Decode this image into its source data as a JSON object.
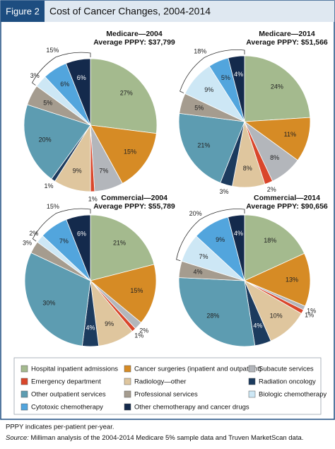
{
  "figure_label": "Figure 2",
  "header_title": "Cost of Cancer Changes, 2004-2014",
  "legend": {
    "categories": [
      "Hospital inpatient admissions",
      "Cancer surgeries (inpatient and outpatient)",
      "Subacute services",
      "Emergency department",
      "Radiology—other",
      "Radiation oncology",
      "Other outpatient services",
      "Professional services",
      "Biologic chemotherapy",
      "Cytotoxic chemotherapy",
      "Other chemotherapy and cancer drugs"
    ],
    "colors": [
      "#a4ba8e",
      "#d68b25",
      "#b3b6bb",
      "#d9462b",
      "#dfc69e",
      "#1c3b5e",
      "#5d9cb1",
      "#a59c8f",
      "#cde7f5",
      "#52a5dd",
      "#142a4c"
    ]
  },
  "chart_data": [
    {
      "type": "pie",
      "title": "Medicare—2004",
      "subtitle": "Average PPPY: $37,799",
      "values": [
        27,
        15,
        7,
        1,
        9,
        1,
        20,
        5,
        3,
        6,
        6
      ],
      "value_labels": [
        "27%",
        "15%",
        "7%",
        "1%",
        "9%",
        "1%",
        "20%",
        "5%",
        "3%",
        "6%",
        "6%"
      ],
      "bracket_label": "15%"
    },
    {
      "type": "pie",
      "title": "Medicare—2014",
      "subtitle": "Average PPPY: $51,566",
      "values": [
        24,
        11,
        8,
        2,
        8,
        3,
        21,
        5,
        9,
        5,
        4
      ],
      "value_labels": [
        "24%",
        "11%",
        "8%",
        "2%",
        "8%",
        "3%",
        "21%",
        "5%",
        "9%",
        "5%",
        "4%"
      ],
      "bracket_label": "18%"
    },
    {
      "type": "pie",
      "title": "Commercial—2004",
      "subtitle": "Average PPPY: $55,789",
      "values": [
        21,
        15,
        2,
        1,
        9,
        4,
        30,
        3,
        2,
        7,
        6
      ],
      "value_labels": [
        "21%",
        "15%",
        "2%",
        "1%",
        "9%",
        "4%",
        "30%",
        "3%",
        "2%",
        "7%",
        "6%"
      ],
      "bracket_label": "15%"
    },
    {
      "type": "pie",
      "title": "Commercial—2014",
      "subtitle": "Average PPPY: $90,656",
      "values": [
        18,
        13,
        1,
        1,
        10,
        4,
        28,
        4,
        7,
        9,
        4
      ],
      "value_labels": [
        "18%",
        "13%",
        "1%",
        "1%",
        "10%",
        "4%",
        "28%",
        "4%",
        "7%",
        "9%",
        "4%"
      ],
      "bracket_label": "20%"
    }
  ],
  "notes": {
    "line1": "PPPY indicates per-patient per-year.",
    "source_label": "Source:",
    "source_text": " Milliman analysis of the 2004-2014 Medicare 5% sample data and Truven MarketScan data."
  }
}
